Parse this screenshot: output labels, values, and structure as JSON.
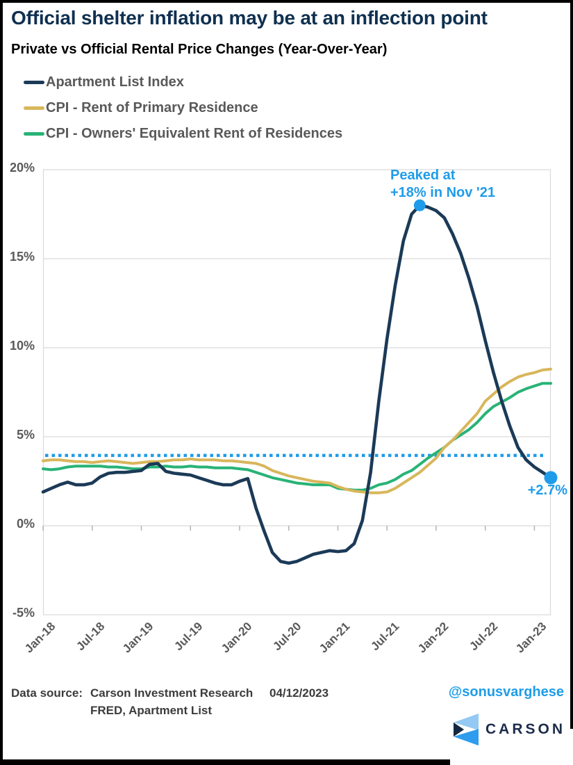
{
  "page": {
    "title": "Official shelter inflation may be at an inflection point",
    "subtitle": "Private vs Official Rental Price Changes (Year-Over-Year)"
  },
  "chart_data": {
    "type": "line",
    "title": "Private vs Official Rental Price Changes (Year-Over-Year)",
    "grid": "horizontal",
    "legend_position": "top-left",
    "ylim": [
      -5,
      20
    ],
    "y_ticks": [
      {
        "label": "20%",
        "value": 20
      },
      {
        "label": "15%",
        "value": 15
      },
      {
        "label": "10%",
        "value": 10
      },
      {
        "label": "5%",
        "value": 5
      },
      {
        "label": "0%",
        "value": 0
      },
      {
        "label": "-5%",
        "value": -5
      }
    ],
    "x_ticks": [
      {
        "label": "Jan-18",
        "month": 0
      },
      {
        "label": "Jul-18",
        "month": 6
      },
      {
        "label": "Jan-19",
        "month": 12
      },
      {
        "label": "Jul-19",
        "month": 18
      },
      {
        "label": "Jan-20",
        "month": 24
      },
      {
        "label": "Jul-20",
        "month": 30
      },
      {
        "label": "Jan-21",
        "month": 36
      },
      {
        "label": "Jul-21",
        "month": 42
      },
      {
        "label": "Jan-22",
        "month": 48
      },
      {
        "label": "Jul-22",
        "month": 54
      },
      {
        "label": "Jan-23",
        "month": 60
      }
    ],
    "x": [
      "Jan-18",
      "Feb-18",
      "Mar-18",
      "Apr-18",
      "May-18",
      "Jun-18",
      "Jul-18",
      "Aug-18",
      "Sep-18",
      "Oct-18",
      "Nov-18",
      "Dec-18",
      "Jan-19",
      "Feb-19",
      "Mar-19",
      "Apr-19",
      "May-19",
      "Jun-19",
      "Jul-19",
      "Aug-19",
      "Sep-19",
      "Oct-19",
      "Nov-19",
      "Dec-19",
      "Jan-20",
      "Feb-20",
      "Mar-20",
      "Apr-20",
      "May-20",
      "Jun-20",
      "Jul-20",
      "Aug-20",
      "Sep-20",
      "Oct-20",
      "Nov-20",
      "Dec-20",
      "Jan-21",
      "Feb-21",
      "Mar-21",
      "Apr-21",
      "May-21",
      "Jun-21",
      "Jul-21",
      "Aug-21",
      "Sep-21",
      "Oct-21",
      "Nov-21",
      "Dec-21",
      "Jan-22",
      "Feb-22",
      "Mar-22",
      "Apr-22",
      "May-22",
      "Jun-22",
      "Jul-22",
      "Aug-22",
      "Sep-22",
      "Oct-22",
      "Nov-22",
      "Dec-22",
      "Jan-23",
      "Feb-23",
      "Mar-23"
    ],
    "series": [
      {
        "name": "Apartment List Index",
        "color": "#1b3a57",
        "values": [
          1.9,
          2.1,
          2.3,
          2.45,
          2.3,
          2.3,
          2.4,
          2.75,
          2.95,
          3.0,
          3.0,
          3.05,
          3.1,
          3.45,
          3.5,
          3.05,
          2.95,
          2.9,
          2.85,
          2.7,
          2.55,
          2.4,
          2.3,
          2.3,
          2.5,
          2.65,
          1.0,
          -0.3,
          -1.5,
          -2.0,
          -2.1,
          -2.0,
          -1.8,
          -1.6,
          -1.5,
          -1.4,
          -1.45,
          -1.4,
          -1.0,
          0.3,
          3.0,
          7.0,
          10.5,
          13.5,
          16.0,
          17.5,
          18.0,
          17.9,
          17.7,
          17.3,
          16.4,
          15.3,
          13.9,
          12.3,
          10.4,
          8.6,
          7.0,
          5.6,
          4.4,
          3.7,
          3.3,
          3.0,
          2.7
        ]
      },
      {
        "name": "CPI - Rent of Primary Residence",
        "color": "#d8b65b",
        "values": [
          3.65,
          3.7,
          3.7,
          3.65,
          3.6,
          3.6,
          3.55,
          3.6,
          3.65,
          3.6,
          3.55,
          3.5,
          3.55,
          3.6,
          3.6,
          3.65,
          3.7,
          3.7,
          3.75,
          3.7,
          3.7,
          3.7,
          3.65,
          3.65,
          3.6,
          3.55,
          3.5,
          3.35,
          3.1,
          2.95,
          2.8,
          2.7,
          2.6,
          2.5,
          2.45,
          2.4,
          2.2,
          2.05,
          1.95,
          1.9,
          1.85,
          1.85,
          1.9,
          2.1,
          2.4,
          2.7,
          3.0,
          3.4,
          3.8,
          4.4,
          4.8,
          5.3,
          5.8,
          6.3,
          7.0,
          7.4,
          7.8,
          8.1,
          8.35,
          8.5,
          8.6,
          8.75,
          8.8
        ]
      },
      {
        "name": "CPI - Owners' Equivalent Rent of Residences",
        "color": "#28b377",
        "values": [
          3.2,
          3.15,
          3.2,
          3.3,
          3.35,
          3.35,
          3.35,
          3.35,
          3.3,
          3.3,
          3.25,
          3.2,
          3.2,
          3.3,
          3.3,
          3.35,
          3.3,
          3.3,
          3.35,
          3.3,
          3.3,
          3.25,
          3.25,
          3.25,
          3.2,
          3.15,
          3.0,
          2.85,
          2.7,
          2.6,
          2.5,
          2.4,
          2.35,
          2.3,
          2.3,
          2.3,
          2.1,
          2.05,
          2.0,
          2.0,
          2.1,
          2.3,
          2.4,
          2.6,
          2.9,
          3.1,
          3.45,
          3.8,
          4.1,
          4.4,
          4.8,
          5.1,
          5.4,
          5.8,
          6.3,
          6.7,
          6.95,
          7.2,
          7.5,
          7.7,
          7.85,
          8.0,
          8.0
        ]
      }
    ],
    "reference_line": {
      "value": 3.95,
      "style": "dotted",
      "color": "#1f9ce9"
    },
    "annotations": [
      {
        "lines": [
          "Peaked at",
          "+18% in Nov '21"
        ],
        "x": "Nov-21",
        "value": 18.0,
        "marker": true
      },
      {
        "text": "+2.7%",
        "x": "Mar-23",
        "value": 2.7,
        "marker": true
      }
    ]
  },
  "footer": {
    "source_label": "Data source:",
    "source_line1": "Carson Investment Research",
    "source_line2": "FRED, Apartment List",
    "date": "04/12/2023",
    "handle": "@sonusvarghese",
    "logo_text": "CARSON"
  }
}
